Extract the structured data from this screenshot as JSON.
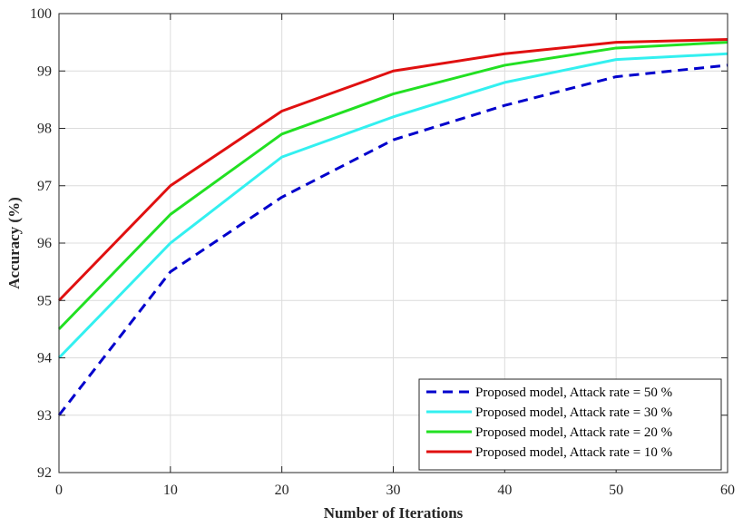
{
  "chart_data": {
    "type": "line",
    "title": "",
    "xlabel": "Number of Iterations",
    "ylabel": "Accuracy (%)",
    "xlim": [
      0,
      60
    ],
    "ylim": [
      92,
      100
    ],
    "xticks": [
      0,
      10,
      20,
      30,
      40,
      50,
      60
    ],
    "yticks": [
      92,
      93,
      94,
      95,
      96,
      97,
      98,
      99,
      100
    ],
    "grid": true,
    "legend_position": "bottom-right",
    "x": [
      0,
      10,
      20,
      30,
      40,
      50,
      60
    ],
    "series": [
      {
        "name": "Proposed model, Attack rate = 50 %",
        "color": "#0000cc",
        "style": "dashed",
        "values": [
          93.0,
          95.5,
          96.8,
          97.8,
          98.4,
          98.9,
          99.1
        ]
      },
      {
        "name": "Proposed model, Attack rate = 30 %",
        "color": "#33f0f0",
        "style": "solid",
        "values": [
          94.0,
          96.0,
          97.5,
          98.2,
          98.8,
          99.2,
          99.3
        ]
      },
      {
        "name": "Proposed model, Attack rate = 20 %",
        "color": "#22e022",
        "style": "solid",
        "values": [
          94.5,
          96.5,
          97.9,
          98.6,
          99.1,
          99.4,
          99.5
        ]
      },
      {
        "name": "Proposed model, Attack rate = 10 %",
        "color": "#e01010",
        "style": "solid",
        "values": [
          95.0,
          97.0,
          98.3,
          99.0,
          99.3,
          99.5,
          99.55
        ]
      }
    ]
  }
}
